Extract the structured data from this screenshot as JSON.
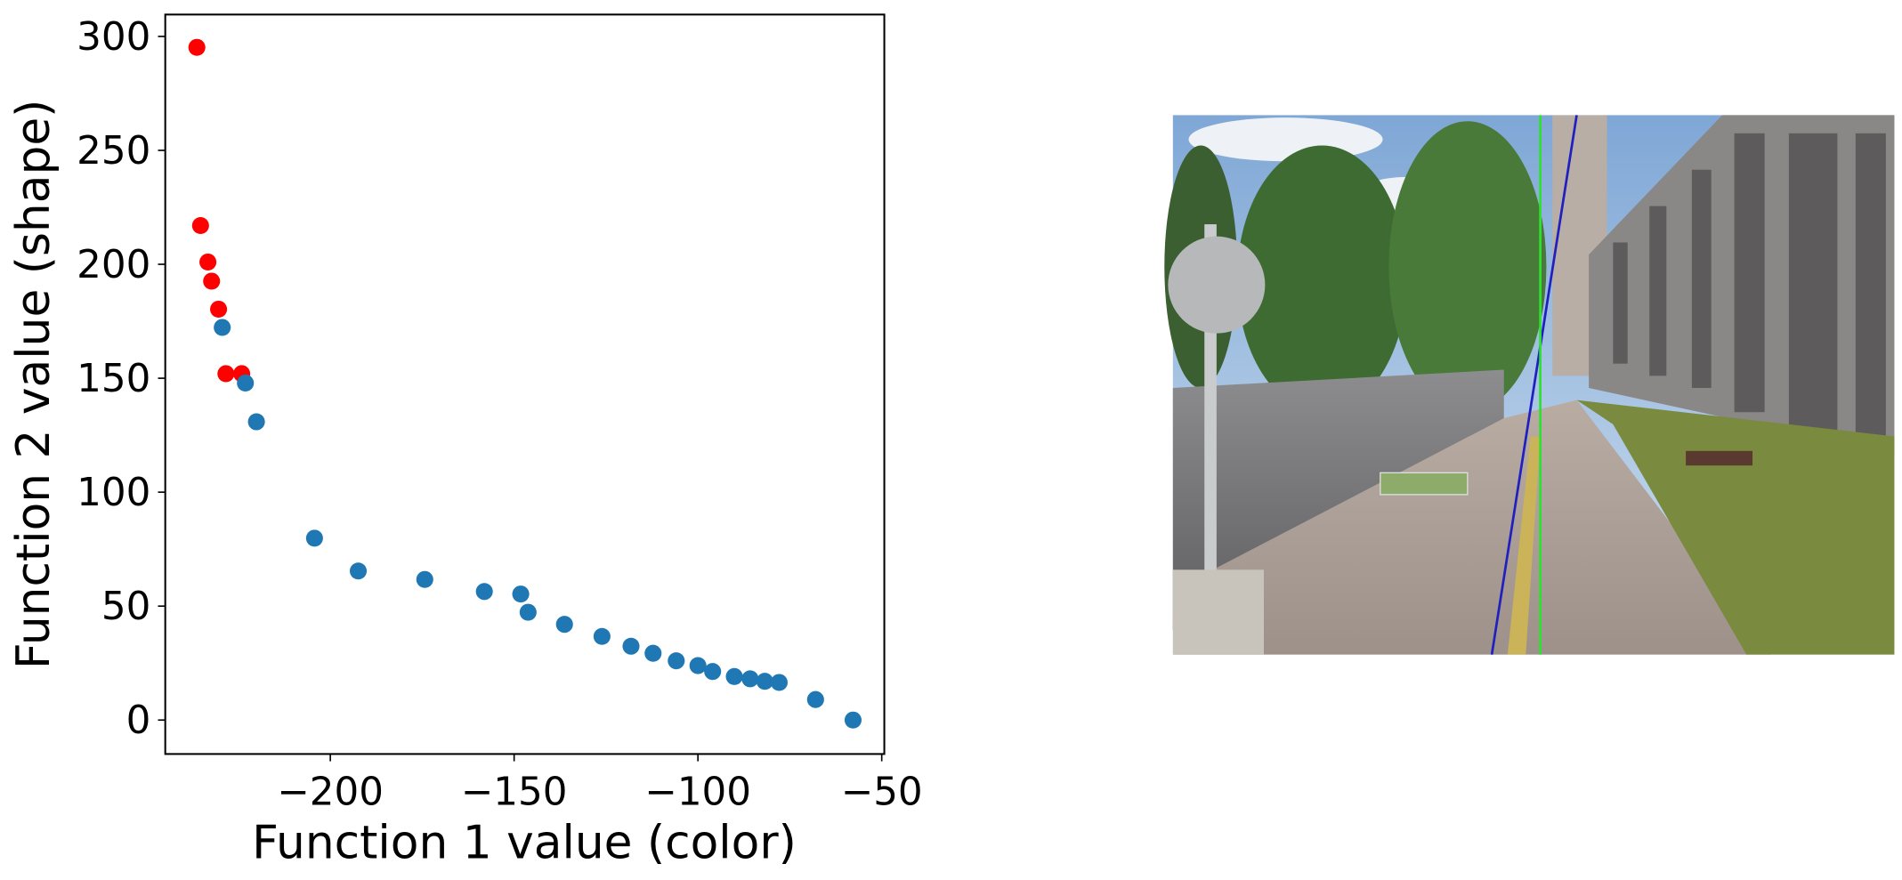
{
  "chart_data": {
    "type": "scatter",
    "xlabel": "Function 1 value (color)",
    "ylabel": "Function 2 value (shape)",
    "xlim": [
      -244.9,
      -49.3
    ],
    "ylim": [
      -14.9,
      309.6
    ],
    "xticks": [
      {
        "value": -200,
        "label": "−200"
      },
      {
        "value": -150,
        "label": "−150"
      },
      {
        "value": -100,
        "label": "−100"
      },
      {
        "value": -50,
        "label": "−50"
      }
    ],
    "yticks": [
      0,
      50,
      100,
      150,
      200,
      250,
      300
    ],
    "series": [
      {
        "color": "#ff0000",
        "x": [
          -236.3,
          -235.3,
          -233.3,
          -232.3,
          -230.4,
          -228.4,
          -224.1
        ],
        "values": [
          295.2,
          217,
          201,
          192.6,
          180.3,
          152,
          152
        ]
      },
      {
        "color": "#1f77b4",
        "x": [
          -229.4,
          -223.1,
          -220.1,
          -204.3,
          -192.4,
          -174.3,
          -158.1,
          -148.2,
          -146.2,
          -136.3,
          -126.1,
          -118.2,
          -112.2,
          -105.9,
          -100,
          -96,
          -90.1,
          -85.8,
          -81.8,
          -77.9,
          -68,
          -57.8
        ],
        "values": [
          172.3,
          147.9,
          130.9,
          79.8,
          65.4,
          61.7,
          56.4,
          55.3,
          47.3,
          42,
          36.7,
          32.4,
          29.3,
          26,
          23.9,
          21.3,
          19.1,
          18.1,
          17,
          16.5,
          9,
          0
        ]
      }
    ]
  }
}
